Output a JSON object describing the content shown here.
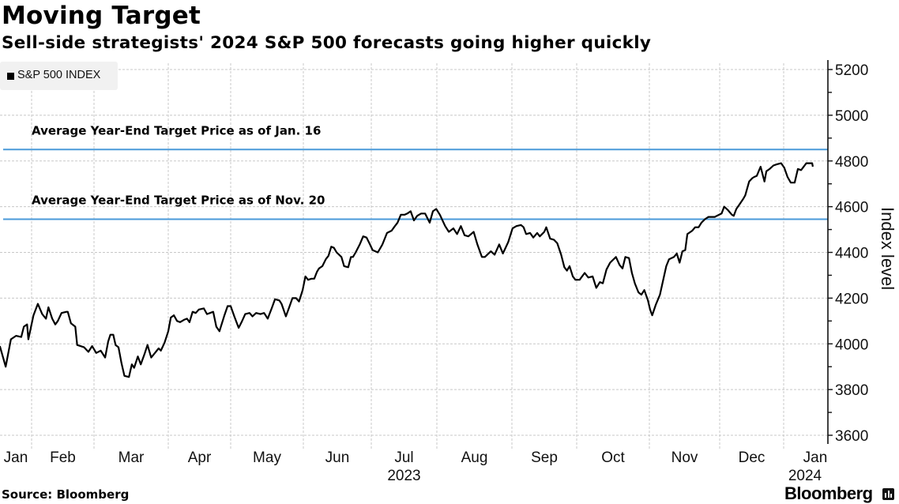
{
  "header": {
    "title": "Moving Target",
    "subtitle": "Sell-side strategists' 2024 S&P 500 forecasts going higher quickly"
  },
  "legend": {
    "items": [
      {
        "label": "S&P 500 INDEX",
        "color": "#000000"
      }
    ]
  },
  "footer": {
    "source": "Source: Bloomberg",
    "brand": "Bloomberg"
  },
  "colors": {
    "line": "#000000",
    "reference": "#4a9ad9",
    "grid": "#bdbdbd"
  },
  "chart_data": {
    "type": "line",
    "title": "Moving Target",
    "subtitle": "Sell-side strategists' 2024 S&P 500 forecasts going higher quickly",
    "xlabel": "",
    "ylabel": "Index level",
    "ylim": [
      3600,
      5200
    ],
    "yticks": [
      3600,
      3800,
      4000,
      4200,
      4400,
      4600,
      4800,
      5000,
      5200
    ],
    "y_axis_side": "right",
    "grid": true,
    "legend_position": "top-left",
    "x_unit": "months since Jan 1, 2023",
    "xlim": [
      0.51,
      12.45
    ],
    "xticks": [
      {
        "label": "Jan",
        "pos": 0.5
      },
      {
        "label": "Feb",
        "pos": 1.5
      },
      {
        "label": "Mar",
        "pos": 2.5
      },
      {
        "label": "Apr",
        "pos": 3.5
      },
      {
        "label": "May",
        "pos": 4.5
      },
      {
        "label": "Jun",
        "pos": 5.5
      },
      {
        "label": "Jul",
        "pos": 6.5
      },
      {
        "label": "Aug",
        "pos": 7.5
      },
      {
        "label": "Sep",
        "pos": 8.5
      },
      {
        "label": "Oct",
        "pos": 9.5
      },
      {
        "label": "Nov",
        "pos": 10.5
      },
      {
        "label": "Dec",
        "pos": 11.5
      },
      {
        "label": "Jan",
        "pos": 12.5
      }
    ],
    "year_labels": [
      {
        "label": "2023",
        "pos": 6.5
      },
      {
        "label": "2024",
        "pos": 12.35
      }
    ],
    "month_boundaries": [
      1,
      2,
      3,
      4,
      5,
      6,
      7,
      8,
      9,
      10,
      11,
      12
    ],
    "reference_lines": [
      {
        "label": "Average Year-End Target Price as of Jan. 16",
        "value": 4850
      },
      {
        "label": "Average Year-End Target Price as of Nov. 20",
        "value": 4545
      }
    ],
    "series": [
      {
        "name": "S&P 500 INDEX",
        "points": [
          [
            0.51,
            3990
          ],
          [
            0.6,
            3900
          ],
          [
            0.68,
            4020
          ],
          [
            0.76,
            4035
          ],
          [
            0.84,
            4030
          ],
          [
            0.88,
            4075
          ],
          [
            0.93,
            4085
          ],
          [
            0.95,
            4020
          ],
          [
            1.03,
            4125
          ],
          [
            1.1,
            4175
          ],
          [
            1.17,
            4130
          ],
          [
            1.23,
            4110
          ],
          [
            1.27,
            4160
          ],
          [
            1.33,
            4110
          ],
          [
            1.38,
            4085
          ],
          [
            1.42,
            4100
          ],
          [
            1.48,
            4135
          ],
          [
            1.56,
            4140
          ],
          [
            1.58,
            4140
          ],
          [
            1.63,
            4090
          ],
          [
            1.7,
            4075
          ],
          [
            1.73,
            3995
          ],
          [
            1.84,
            3985
          ],
          [
            1.91,
            3965
          ],
          [
            1.97,
            3990
          ],
          [
            2.03,
            3960
          ],
          [
            2.09,
            3970
          ],
          [
            2.15,
            3940
          ],
          [
            2.19,
            4010
          ],
          [
            2.22,
            4040
          ],
          [
            2.26,
            4040
          ],
          [
            2.29,
            3995
          ],
          [
            2.33,
            3985
          ],
          [
            2.37,
            3915
          ],
          [
            2.41,
            3860
          ],
          [
            2.47,
            3855
          ],
          [
            2.51,
            3910
          ],
          [
            2.54,
            3895
          ],
          [
            2.59,
            3945
          ],
          [
            2.63,
            3910
          ],
          [
            2.68,
            3955
          ],
          [
            2.72,
            3995
          ],
          [
            2.77,
            3940
          ],
          [
            2.82,
            3960
          ],
          [
            2.87,
            3980
          ],
          [
            2.9,
            3970
          ],
          [
            2.95,
            4005
          ],
          [
            3.0,
            4055
          ],
          [
            3.04,
            4115
          ],
          [
            3.09,
            4125
          ],
          [
            3.14,
            4100
          ],
          [
            3.19,
            4095
          ],
          [
            3.25,
            4105
          ],
          [
            3.3,
            4110
          ],
          [
            3.34,
            4095
          ],
          [
            3.39,
            4140
          ],
          [
            3.44,
            4135
          ],
          [
            3.49,
            4150
          ],
          [
            3.57,
            4155
          ],
          [
            3.62,
            4130
          ],
          [
            3.67,
            4135
          ],
          [
            3.72,
            4140
          ],
          [
            3.77,
            4075
          ],
          [
            3.82,
            4055
          ],
          [
            3.9,
            4125
          ],
          [
            3.95,
            4165
          ],
          [
            4.0,
            4165
          ],
          [
            4.05,
            4120
          ],
          [
            4.11,
            4070
          ],
          [
            4.15,
            4095
          ],
          [
            4.2,
            4130
          ],
          [
            4.26,
            4135
          ],
          [
            4.3,
            4120
          ],
          [
            4.35,
            4135
          ],
          [
            4.41,
            4130
          ],
          [
            4.46,
            4135
          ],
          [
            4.51,
            4110
          ],
          [
            4.57,
            4160
          ],
          [
            4.61,
            4195
          ],
          [
            4.67,
            4190
          ],
          [
            4.7,
            4175
          ],
          [
            4.76,
            4120
          ],
          [
            4.8,
            4155
          ],
          [
            4.85,
            4200
          ],
          [
            4.9,
            4200
          ],
          [
            4.94,
            4185
          ],
          [
            4.99,
            4235
          ],
          [
            5.03,
            4295
          ],
          [
            5.07,
            4280
          ],
          [
            5.12,
            4285
          ],
          [
            5.16,
            4285
          ],
          [
            5.2,
            4315
          ],
          [
            5.23,
            4330
          ],
          [
            5.28,
            4340
          ],
          [
            5.33,
            4370
          ],
          [
            5.37,
            4385
          ],
          [
            5.41,
            4425
          ],
          [
            5.45,
            4420
          ],
          [
            5.49,
            4400
          ],
          [
            5.56,
            4380
          ],
          [
            5.6,
            4340
          ],
          [
            5.66,
            4335
          ],
          [
            5.7,
            4380
          ],
          [
            5.73,
            4380
          ],
          [
            5.77,
            4400
          ],
          [
            5.83,
            4435
          ],
          [
            5.88,
            4470
          ],
          [
            5.93,
            4465
          ],
          [
            5.98,
            4435
          ],
          [
            6.02,
            4410
          ],
          [
            6.1,
            4400
          ],
          [
            6.17,
            4435
          ],
          [
            6.24,
            4485
          ],
          [
            6.31,
            4495
          ],
          [
            6.36,
            4515
          ],
          [
            6.4,
            4530
          ],
          [
            6.45,
            4565
          ],
          [
            6.51,
            4565
          ],
          [
            6.55,
            4570
          ],
          [
            6.6,
            4580
          ],
          [
            6.65,
            4540
          ],
          [
            6.7,
            4560
          ],
          [
            6.76,
            4570
          ],
          [
            6.82,
            4570
          ],
          [
            6.89,
            4530
          ],
          [
            6.94,
            4580
          ],
          [
            6.99,
            4590
          ],
          [
            7.04,
            4565
          ],
          [
            7.11,
            4515
          ],
          [
            7.16,
            4490
          ],
          [
            7.22,
            4505
          ],
          [
            7.27,
            4480
          ],
          [
            7.32,
            4515
          ],
          [
            7.37,
            4475
          ],
          [
            7.42,
            4470
          ],
          [
            7.49,
            4490
          ],
          [
            7.54,
            4435
          ],
          [
            7.6,
            4380
          ],
          [
            7.64,
            4380
          ],
          [
            7.72,
            4405
          ],
          [
            7.77,
            4390
          ],
          [
            7.83,
            4435
          ],
          [
            7.88,
            4395
          ],
          [
            7.95,
            4445
          ],
          [
            8.01,
            4505
          ],
          [
            8.07,
            4515
          ],
          [
            8.14,
            4520
          ],
          [
            8.18,
            4510
          ],
          [
            8.22,
            4480
          ],
          [
            8.28,
            4485
          ],
          [
            8.33,
            4465
          ],
          [
            8.39,
            4485
          ],
          [
            8.43,
            4470
          ],
          [
            8.5,
            4490
          ],
          [
            8.53,
            4510
          ],
          [
            8.59,
            4460
          ],
          [
            8.65,
            4455
          ],
          [
            8.7,
            4440
          ],
          [
            8.76,
            4390
          ],
          [
            8.81,
            4335
          ],
          [
            8.85,
            4320
          ],
          [
            8.89,
            4340
          ],
          [
            8.94,
            4295
          ],
          [
            8.98,
            4280
          ],
          [
            9.04,
            4280
          ],
          [
            9.11,
            4310
          ],
          [
            9.16,
            4290
          ],
          [
            9.22,
            4295
          ],
          [
            9.27,
            4245
          ],
          [
            9.32,
            4270
          ],
          [
            9.36,
            4265
          ],
          [
            9.41,
            4325
          ],
          [
            9.46,
            4355
          ],
          [
            9.54,
            4380
          ],
          [
            9.59,
            4345
          ],
          [
            9.63,
            4330
          ],
          [
            9.67,
            4380
          ],
          [
            9.72,
            4375
          ],
          [
            9.76,
            4310
          ],
          [
            9.8,
            4265
          ],
          [
            9.85,
            4225
          ],
          [
            9.89,
            4215
          ],
          [
            9.93,
            4235
          ],
          [
            9.98,
            4190
          ],
          [
            10.01,
            4150
          ],
          [
            10.04,
            4125
          ],
          [
            10.09,
            4170
          ],
          [
            10.15,
            4215
          ],
          [
            10.19,
            4270
          ],
          [
            10.24,
            4340
          ],
          [
            10.28,
            4370
          ],
          [
            10.35,
            4380
          ],
          [
            10.39,
            4395
          ],
          [
            10.43,
            4355
          ],
          [
            10.47,
            4405
          ],
          [
            10.51,
            4410
          ],
          [
            10.54,
            4480
          ],
          [
            10.61,
            4495
          ],
          [
            10.65,
            4510
          ],
          [
            10.7,
            4510
          ],
          [
            10.74,
            4530
          ],
          [
            10.79,
            4545
          ],
          [
            10.84,
            4555
          ],
          [
            10.88,
            4555
          ],
          [
            10.93,
            4555
          ],
          [
            10.96,
            4560
          ],
          [
            11.03,
            4570
          ],
          [
            11.07,
            4600
          ],
          [
            11.13,
            4585
          ],
          [
            11.19,
            4565
          ],
          [
            11.22,
            4560
          ],
          [
            11.26,
            4590
          ],
          [
            11.31,
            4610
          ],
          [
            11.37,
            4635
          ],
          [
            11.4,
            4650
          ],
          [
            11.46,
            4710
          ],
          [
            11.51,
            4725
          ],
          [
            11.54,
            4730
          ],
          [
            11.58,
            4735
          ],
          [
            11.64,
            4775
          ],
          [
            11.7,
            4710
          ],
          [
            11.73,
            4755
          ],
          [
            11.78,
            4765
          ],
          [
            11.84,
            4780
          ],
          [
            11.89,
            4785
          ],
          [
            11.96,
            4790
          ],
          [
            12.01,
            4770
          ],
          [
            12.06,
            4730
          ],
          [
            12.11,
            4705
          ],
          [
            12.17,
            4705
          ],
          [
            12.22,
            4765
          ],
          [
            12.27,
            4760
          ],
          [
            12.35,
            4790
          ],
          [
            12.4,
            4790
          ],
          [
            12.44,
            4790
          ],
          [
            12.45,
            4775
          ]
        ]
      }
    ]
  }
}
